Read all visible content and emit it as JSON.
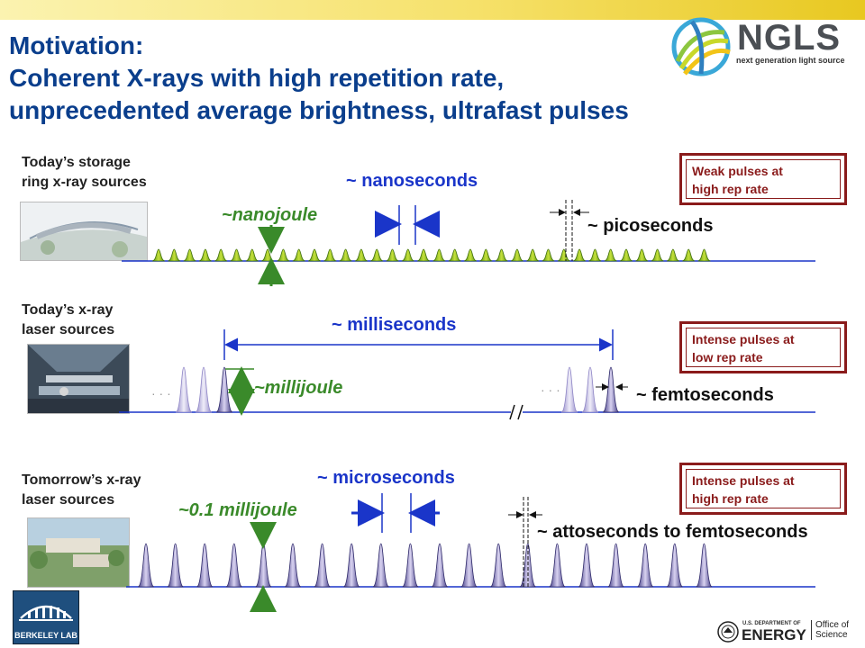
{
  "title": {
    "line1": "Motivation:",
    "line2": "Coherent X-rays with high repetition rate,",
    "line3": "unprecedented average brightness, ultrafast pulses"
  },
  "logo": {
    "name": "NGLS",
    "subtitle": "next generation light source"
  },
  "rows": [
    {
      "label_line1": "Today’s storage",
      "label_line2": "ring x-ray sources",
      "spacing_label": "~ nanoseconds",
      "energy_label": "~nanojoule",
      "duration_label": "~ picoseconds",
      "callout_line1": "Weak pulses at",
      "callout_line2": "high rep rate"
    },
    {
      "label_line1": "Today’s x-ray",
      "label_line2": "laser sources",
      "spacing_label": "~ milliseconds",
      "energy_label": "~millijoule",
      "duration_label": "~ femtoseconds",
      "callout_line1": "Intense pulses at",
      "callout_line2": "low rep rate"
    },
    {
      "label_line1": "Tomorrow’s x-ray",
      "label_line2": "laser sources",
      "spacing_label": "~ microseconds",
      "energy_label": "~0.1 millijoule",
      "duration_label": "~ attoseconds to femtoseconds",
      "callout_line1": "Intense pulses at",
      "callout_line2": "high rep rate"
    }
  ],
  "footer": {
    "lab_name": "BERKELEY LAB",
    "doe_small": "U.S. DEPARTMENT OF",
    "doe_big": "ENERGY",
    "office_line1": "Office of",
    "office_line2": "Science"
  },
  "colors": {
    "title": "#0a3e8c",
    "blue_label": "#1a35c9",
    "green_label": "#3a8a2a",
    "callout_border": "#8a1b1b",
    "pulse_green": "#8fc21e",
    "pulse_purple": "#7a6fb8"
  }
}
